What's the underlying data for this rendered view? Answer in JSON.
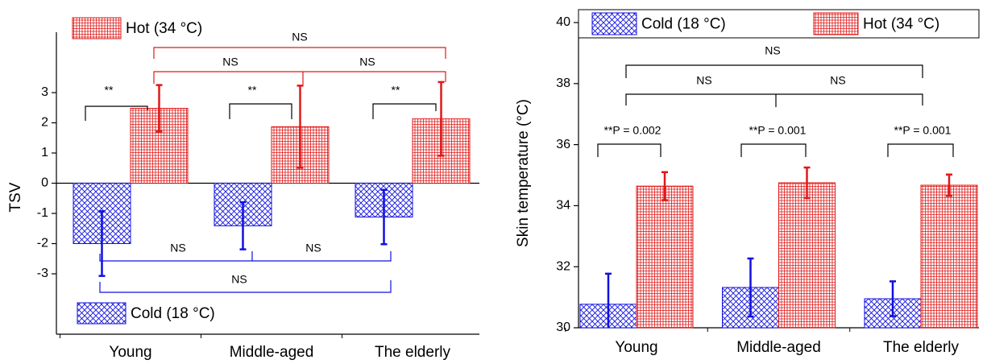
{
  "chart_data": [
    {
      "type": "bar",
      "y_label": "TSV",
      "categories": [
        "Young",
        "Middle-aged",
        "The elderly"
      ],
      "series": [
        {
          "name": "Cold (18 °C)",
          "color": "#1010e0",
          "values": [
            -2.0,
            -1.41,
            -1.12
          ],
          "errors": [
            1.07,
            0.78,
            0.9
          ]
        },
        {
          "name": "Hot (34 °C)",
          "color": "#e01818",
          "values": [
            2.48,
            1.87,
            2.13
          ],
          "errors": [
            0.77,
            1.36,
            1.22
          ]
        }
      ],
      "ylim": [
        -5,
        5
      ],
      "yticks": [
        -3,
        -2,
        -1,
        0,
        1,
        2,
        3
      ],
      "annotations": [
        "**",
        "**",
        "**",
        "NS",
        "NS",
        "NS",
        "NS",
        "NS",
        "NS"
      ]
    },
    {
      "type": "bar",
      "y_label": "Skin temperature (°C)",
      "categories": [
        "Young",
        "Middle-aged",
        "The elderly"
      ],
      "series": [
        {
          "name": "Cold (18 °C)",
          "color": "#1010e0",
          "values": [
            30.77,
            31.32,
            30.95
          ],
          "errors": [
            1.0,
            0.95,
            0.57
          ]
        },
        {
          "name": "Hot (34 °C)",
          "color": "#e01818",
          "values": [
            34.64,
            34.75,
            34.67
          ],
          "errors": [
            0.46,
            0.5,
            0.35
          ]
        }
      ],
      "ylim": [
        30,
        40
      ],
      "yticks": [
        30,
        32,
        34,
        36,
        38,
        40
      ],
      "annotations": [
        "**P = 0.002",
        "**P = 0.001",
        "**P = 0.001",
        "NS",
        "NS",
        "NS"
      ]
    }
  ]
}
